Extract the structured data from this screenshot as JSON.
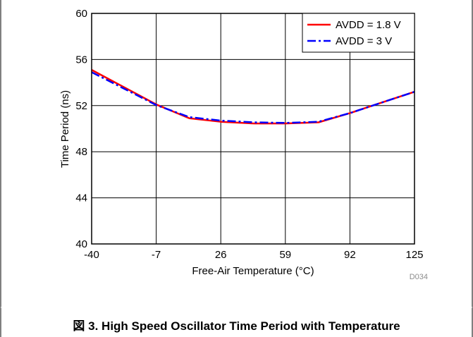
{
  "caption": {
    "figure_label": "図 3.",
    "text": "High Speed Oscillator Time Period with Temperature"
  },
  "figure_id": "D034",
  "chart_data": {
    "type": "line",
    "xlabel": "Free-Air Temperature (°C)",
    "ylabel": "Time Period (ns)",
    "x_ticks": [
      -40,
      -7,
      26,
      59,
      92,
      125
    ],
    "y_ticks": [
      40,
      44,
      48,
      52,
      56,
      60
    ],
    "xlim": [
      -40,
      125
    ],
    "ylim": [
      40,
      60
    ],
    "grid": true,
    "legend_position": "top-right",
    "series": [
      {
        "name": "AVDD = 1.8 V",
        "color": "#ff0000",
        "style": "solid",
        "points": [
          [
            -40,
            55.1
          ],
          [
            -7,
            52.1
          ],
          [
            10,
            50.9
          ],
          [
            26,
            50.6
          ],
          [
            43,
            50.45
          ],
          [
            59,
            50.45
          ],
          [
            76,
            50.55
          ],
          [
            92,
            51.35
          ],
          [
            108,
            52.25
          ],
          [
            125,
            53.2
          ]
        ]
      },
      {
        "name": "AVDD = 3 V",
        "color": "#0000ff",
        "style": "dash-dot",
        "points": [
          [
            -40,
            54.9
          ],
          [
            -7,
            52.05
          ],
          [
            10,
            51.0
          ],
          [
            26,
            50.7
          ],
          [
            43,
            50.55
          ],
          [
            59,
            50.5
          ],
          [
            76,
            50.6
          ],
          [
            92,
            51.35
          ],
          [
            108,
            52.25
          ],
          [
            125,
            53.2
          ]
        ]
      }
    ]
  }
}
